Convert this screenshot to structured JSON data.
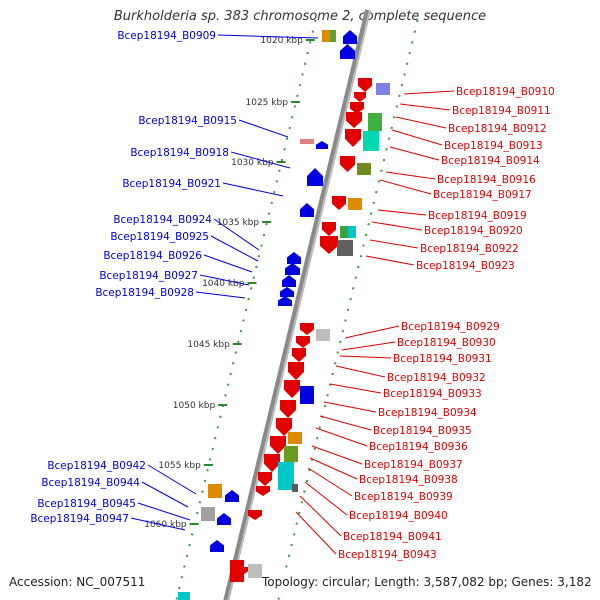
{
  "title": "Burkholderia sp. 383 chromosome 2, complete sequence",
  "footer": {
    "accession": "Accession: NC_007511",
    "topology": "Topology: circular; Length: 3,587,082 bp; Genes: 3,182"
  },
  "colors": {
    "forward_strand": "#e00000",
    "reverse_strand": "#0000e0",
    "backbone": "#8a8a8a",
    "tick": "#2a8a2a"
  },
  "ticks": [
    {
      "label": "1020 kbp"
    },
    {
      "label": "1025 kbp"
    },
    {
      "label": "1030 kbp"
    },
    {
      "label": "1035 kbp"
    },
    {
      "label": "1040 kbp"
    },
    {
      "label": "1045 kbp"
    },
    {
      "label": "1050 kbp"
    },
    {
      "label": "1055 kbp"
    },
    {
      "label": "1060 kbp"
    }
  ],
  "left_labels": [
    "Bcep18194_B0909",
    "Bcep18194_B0915",
    "Bcep18194_B0918",
    "Bcep18194_B0921",
    "Bcep18194_B0924",
    "Bcep18194_B0925",
    "Bcep18194_B0926",
    "Bcep18194_B0927",
    "Bcep18194_B0928",
    "Bcep18194_B0942",
    "Bcep18194_B0944",
    "Bcep18194_B0945",
    "Bcep18194_B0947"
  ],
  "right_labels": [
    "Bcep18194_B0910",
    "Bcep18194_B0911",
    "Bcep18194_B0912",
    "Bcep18194_B0913",
    "Bcep18194_B0914",
    "Bcep18194_B0916",
    "Bcep18194_B0917",
    "Bcep18194_B0919",
    "Bcep18194_B0920",
    "Bcep18194_B0922",
    "Bcep18194_B0923",
    "Bcep18194_B0929",
    "Bcep18194_B0930",
    "Bcep18194_B0931",
    "Bcep18194_B0932",
    "Bcep18194_B0933",
    "Bcep18194_B0934",
    "Bcep18194_B0935",
    "Bcep18194_B0936",
    "Bcep18194_B0937",
    "Bcep18194_B0938",
    "Bcep18194_B0939",
    "Bcep18194_B0940",
    "Bcep18194_B0941",
    "Bcep18194_B0943"
  ]
}
